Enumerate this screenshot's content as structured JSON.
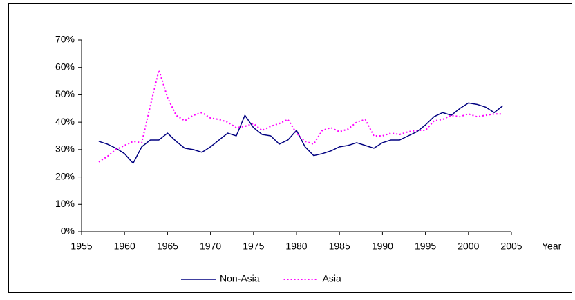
{
  "chart_data": {
    "type": "line",
    "x": [
      1957,
      1958,
      1959,
      1960,
      1961,
      1962,
      1963,
      1964,
      1965,
      1966,
      1967,
      1968,
      1969,
      1970,
      1971,
      1972,
      1973,
      1974,
      1975,
      1976,
      1977,
      1978,
      1979,
      1980,
      1981,
      1982,
      1983,
      1984,
      1985,
      1986,
      1987,
      1988,
      1989,
      1990,
      1991,
      1992,
      1993,
      1994,
      1995,
      1996,
      1997,
      1998,
      1999,
      2000,
      2001,
      2002,
      2003,
      2004
    ],
    "series": [
      {
        "name": "Non-Asia",
        "color": "#000080",
        "dash": "solid",
        "values": [
          33,
          32,
          30.5,
          28.5,
          25,
          31,
          33.5,
          33.5,
          36,
          33,
          30.5,
          30,
          29,
          31,
          33.5,
          36,
          35,
          42.5,
          38,
          35.5,
          35,
          32,
          33.5,
          37,
          31,
          27.8,
          28.5,
          29.5,
          31,
          31.5,
          32.5,
          31.5,
          30.5,
          32.5,
          33.5,
          33.5,
          35,
          36.5,
          39,
          42,
          43.5,
          42.5,
          45,
          47,
          46.5,
          45.5,
          43.5,
          46
        ]
      },
      {
        "name": "Asia",
        "color": "#ff00ff",
        "dash": "dotted",
        "values": [
          25.5,
          27.5,
          30,
          31.5,
          33,
          32.5,
          46,
          59,
          49,
          42.5,
          40.5,
          42.5,
          43.5,
          41.5,
          41,
          40,
          38,
          38.5,
          39.5,
          37,
          38.5,
          39.5,
          41,
          36,
          33,
          32,
          37,
          38,
          36.5,
          37.5,
          40,
          41,
          35,
          35,
          36,
          35.5,
          36.5,
          37,
          37,
          40.5,
          41,
          42.5,
          42,
          43,
          42,
          42.5,
          43,
          43
        ]
      }
    ],
    "x_label": "Year",
    "xlim": [
      1955,
      2005
    ],
    "xticks": [
      1955,
      1960,
      1965,
      1970,
      1975,
      1980,
      1985,
      1990,
      1995,
      2000,
      2005
    ],
    "ylim": [
      0,
      70
    ],
    "yticks": [
      {
        "value": 0,
        "label": "0%"
      },
      {
        "value": 10,
        "label": "10%"
      },
      {
        "value": 20,
        "label": "20%"
      },
      {
        "value": 30,
        "label": "30%"
      },
      {
        "value": 40,
        "label": "40%"
      },
      {
        "value": 50,
        "label": "50%"
      },
      {
        "value": 60,
        "label": "60%"
      },
      {
        "value": 70,
        "label": "70%"
      }
    ],
    "grid": false,
    "legend": "bottom"
  }
}
